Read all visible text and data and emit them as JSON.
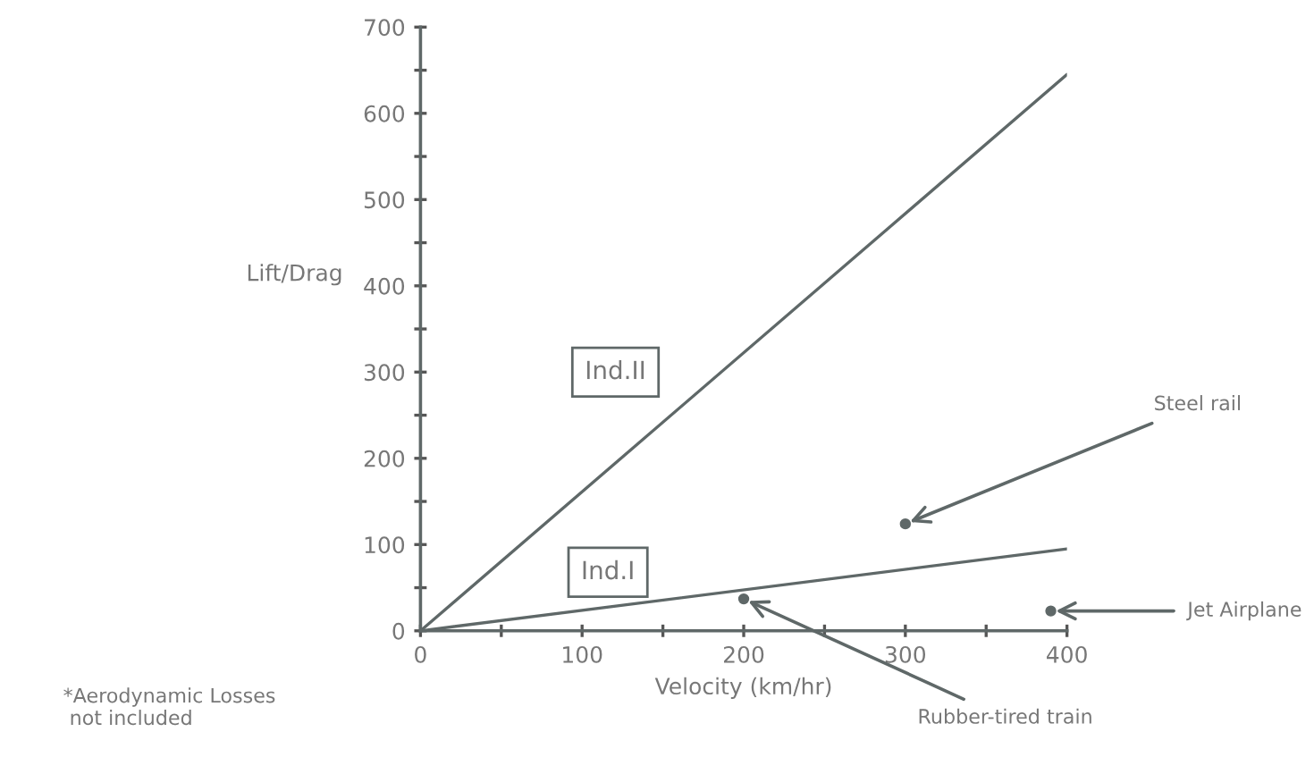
{
  "chart_data": {
    "type": "line",
    "xlabel": "Velocity (km/hr)",
    "ylabel": "Lift/Drag",
    "series": [
      {
        "name": "Ind.I",
        "color": "#5f6868",
        "x": [
          0,
          400
        ],
        "values": [
          0,
          95
        ]
      },
      {
        "name": "Ind.II",
        "color": "#5f6868",
        "x": [
          0,
          400
        ],
        "values": [
          0,
          645
        ]
      },
      {
        "type": "scatter",
        "marker": "circle",
        "color": "#5f6868",
        "x": [
          200,
          300,
          390
        ],
        "values": [
          37,
          124,
          23
        ]
      }
    ],
    "xlim": [
      0,
      400
    ],
    "xticks": [
      0,
      {
        "value": 50,
        "label": null
      },
      100,
      {
        "value": 150,
        "label": null
      },
      200,
      {
        "value": 250,
        "label": null
      },
      300,
      {
        "value": 350,
        "label": null
      },
      400
    ],
    "ylim": [
      0,
      700
    ],
    "yticks": [
      0,
      {
        "value": 50,
        "label": null
      },
      100,
      {
        "value": 150,
        "label": null
      },
      200,
      {
        "value": 250,
        "label": null
      },
      300,
      {
        "value": 350,
        "label": null
      },
      400,
      {
        "value": 450,
        "label": null
      },
      500,
      {
        "value": 550,
        "label": null
      },
      600,
      {
        "value": 650,
        "label": null
      },
      700
    ],
    "grid": false,
    "legend": false,
    "line_style": "solid",
    "annotations": [
      {
        "text": "Rubber-tired train",
        "x": 200,
        "y": 37
      },
      {
        "text": "Steel rail",
        "x": 300,
        "y": 124
      },
      {
        "text": "Jet Airplane",
        "x": 390,
        "y": 23
      },
      "*Aerodynamic Losses\n not included"
    ]
  }
}
